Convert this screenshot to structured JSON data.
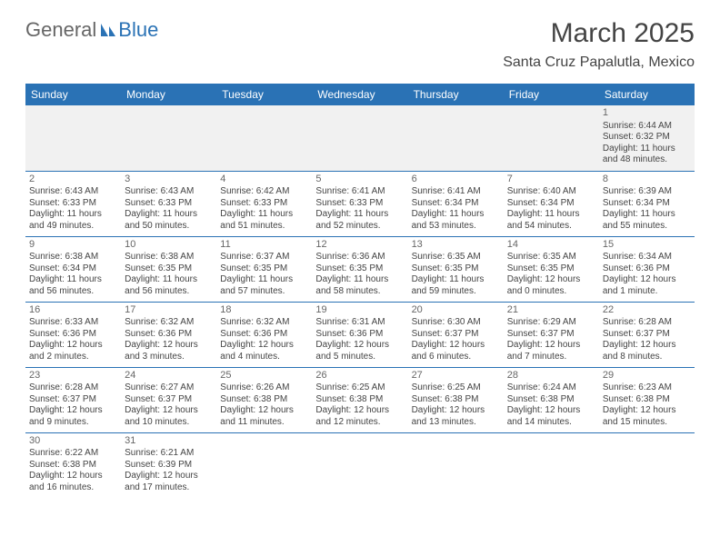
{
  "logo": {
    "part1": "General",
    "part2": "Blue"
  },
  "title": "March 2025",
  "location": "Santa Cruz Papalutla, Mexico",
  "colors": {
    "header_bg": "#2a72b5",
    "header_text": "#ffffff",
    "rule": "#2a72b5",
    "text": "#444444"
  },
  "weekdays": [
    "Sunday",
    "Monday",
    "Tuesday",
    "Wednesday",
    "Thursday",
    "Friday",
    "Saturday"
  ],
  "days": {
    "1": {
      "sunrise": "6:44 AM",
      "sunset": "6:32 PM",
      "daylight": "11 hours and 48 minutes."
    },
    "2": {
      "sunrise": "6:43 AM",
      "sunset": "6:33 PM",
      "daylight": "11 hours and 49 minutes."
    },
    "3": {
      "sunrise": "6:43 AM",
      "sunset": "6:33 PM",
      "daylight": "11 hours and 50 minutes."
    },
    "4": {
      "sunrise": "6:42 AM",
      "sunset": "6:33 PM",
      "daylight": "11 hours and 51 minutes."
    },
    "5": {
      "sunrise": "6:41 AM",
      "sunset": "6:33 PM",
      "daylight": "11 hours and 52 minutes."
    },
    "6": {
      "sunrise": "6:41 AM",
      "sunset": "6:34 PM",
      "daylight": "11 hours and 53 minutes."
    },
    "7": {
      "sunrise": "6:40 AM",
      "sunset": "6:34 PM",
      "daylight": "11 hours and 54 minutes."
    },
    "8": {
      "sunrise": "6:39 AM",
      "sunset": "6:34 PM",
      "daylight": "11 hours and 55 minutes."
    },
    "9": {
      "sunrise": "6:38 AM",
      "sunset": "6:34 PM",
      "daylight": "11 hours and 56 minutes."
    },
    "10": {
      "sunrise": "6:38 AM",
      "sunset": "6:35 PM",
      "daylight": "11 hours and 56 minutes."
    },
    "11": {
      "sunrise": "6:37 AM",
      "sunset": "6:35 PM",
      "daylight": "11 hours and 57 minutes."
    },
    "12": {
      "sunrise": "6:36 AM",
      "sunset": "6:35 PM",
      "daylight": "11 hours and 58 minutes."
    },
    "13": {
      "sunrise": "6:35 AM",
      "sunset": "6:35 PM",
      "daylight": "11 hours and 59 minutes."
    },
    "14": {
      "sunrise": "6:35 AM",
      "sunset": "6:35 PM",
      "daylight": "12 hours and 0 minutes."
    },
    "15": {
      "sunrise": "6:34 AM",
      "sunset": "6:36 PM",
      "daylight": "12 hours and 1 minute."
    },
    "16": {
      "sunrise": "6:33 AM",
      "sunset": "6:36 PM",
      "daylight": "12 hours and 2 minutes."
    },
    "17": {
      "sunrise": "6:32 AM",
      "sunset": "6:36 PM",
      "daylight": "12 hours and 3 minutes."
    },
    "18": {
      "sunrise": "6:32 AM",
      "sunset": "6:36 PM",
      "daylight": "12 hours and 4 minutes."
    },
    "19": {
      "sunrise": "6:31 AM",
      "sunset": "6:36 PM",
      "daylight": "12 hours and 5 minutes."
    },
    "20": {
      "sunrise": "6:30 AM",
      "sunset": "6:37 PM",
      "daylight": "12 hours and 6 minutes."
    },
    "21": {
      "sunrise": "6:29 AM",
      "sunset": "6:37 PM",
      "daylight": "12 hours and 7 minutes."
    },
    "22": {
      "sunrise": "6:28 AM",
      "sunset": "6:37 PM",
      "daylight": "12 hours and 8 minutes."
    },
    "23": {
      "sunrise": "6:28 AM",
      "sunset": "6:37 PM",
      "daylight": "12 hours and 9 minutes."
    },
    "24": {
      "sunrise": "6:27 AM",
      "sunset": "6:37 PM",
      "daylight": "12 hours and 10 minutes."
    },
    "25": {
      "sunrise": "6:26 AM",
      "sunset": "6:38 PM",
      "daylight": "12 hours and 11 minutes."
    },
    "26": {
      "sunrise": "6:25 AM",
      "sunset": "6:38 PM",
      "daylight": "12 hours and 12 minutes."
    },
    "27": {
      "sunrise": "6:25 AM",
      "sunset": "6:38 PM",
      "daylight": "12 hours and 13 minutes."
    },
    "28": {
      "sunrise": "6:24 AM",
      "sunset": "6:38 PM",
      "daylight": "12 hours and 14 minutes."
    },
    "29": {
      "sunrise": "6:23 AM",
      "sunset": "6:38 PM",
      "daylight": "12 hours and 15 minutes."
    },
    "30": {
      "sunrise": "6:22 AM",
      "sunset": "6:38 PM",
      "daylight": "12 hours and 16 minutes."
    },
    "31": {
      "sunrise": "6:21 AM",
      "sunset": "6:39 PM",
      "daylight": "12 hours and 17 minutes."
    }
  },
  "labels": {
    "sunrise": "Sunrise: ",
    "sunset": "Sunset: ",
    "daylight": "Daylight: "
  },
  "grid": [
    [
      null,
      null,
      null,
      null,
      null,
      null,
      "1"
    ],
    [
      "2",
      "3",
      "4",
      "5",
      "6",
      "7",
      "8"
    ],
    [
      "9",
      "10",
      "11",
      "12",
      "13",
      "14",
      "15"
    ],
    [
      "16",
      "17",
      "18",
      "19",
      "20",
      "21",
      "22"
    ],
    [
      "23",
      "24",
      "25",
      "26",
      "27",
      "28",
      "29"
    ],
    [
      "30",
      "31",
      null,
      null,
      null,
      null,
      null
    ]
  ]
}
